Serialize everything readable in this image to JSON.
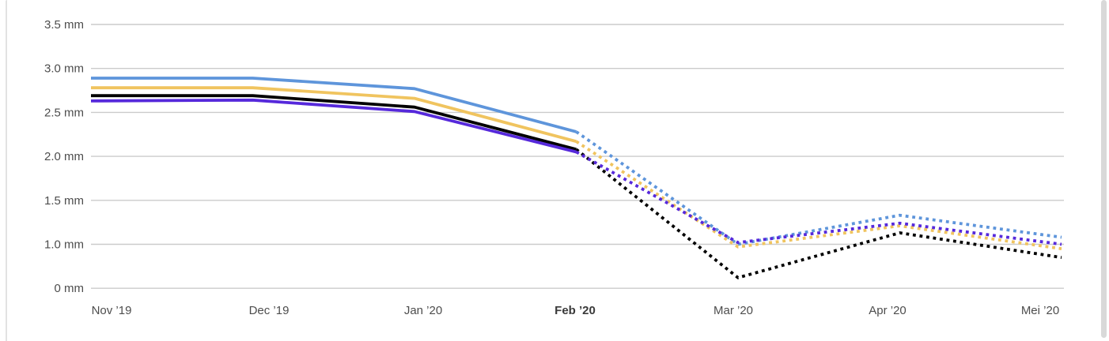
{
  "chart_data": {
    "type": "line",
    "title": "",
    "unit": "mm",
    "x_categories": [
      "Nov ’19",
      "Dec ’19",
      "Jan ’20",
      "Feb ’20",
      "Mar ’20",
      "Apr ’20",
      "Mei ’20"
    ],
    "highlighted_category": "Feb ’20",
    "y_tick_labels": [
      "3.5 mm",
      "3.0 mm",
      "2.5 mm",
      "2.0 mm",
      "1.5 mm",
      "1.0 mm",
      "0 mm"
    ],
    "y_tick_positions_mm": [
      3.5,
      3.0,
      2.5,
      2.0,
      1.5,
      1.0,
      0.5
    ],
    "ylim_linear_mm": [
      0.5,
      3.5
    ],
    "grid": true,
    "legend": "none",
    "dashed_from_index": 3,
    "series": [
      {
        "name": "blue",
        "color": "#5E95DB",
        "values": [
          2.89,
          2.89,
          2.77,
          2.28,
          1.0,
          1.33,
          1.08
        ]
      },
      {
        "name": "gold",
        "color": "#F0C45F",
        "values": [
          2.78,
          2.78,
          2.66,
          2.17,
          0.97,
          1.21,
          0.95
        ]
      },
      {
        "name": "black",
        "color": "#000000",
        "values": [
          2.69,
          2.69,
          2.56,
          2.08,
          0.62,
          1.13,
          0.85
        ]
      },
      {
        "name": "purple",
        "color": "#5629DB",
        "values": [
          2.63,
          2.64,
          2.51,
          2.05,
          1.02,
          1.24,
          1.0
        ]
      }
    ]
  },
  "colors": {
    "background": "#ffffff",
    "gridline": "#cbcbcb",
    "axis_label": "#4d4d4d",
    "axis_label_highlight": "#3a3a3a",
    "card_border": "#e2e2e2",
    "scrollbar": "#d9d9d9"
  }
}
